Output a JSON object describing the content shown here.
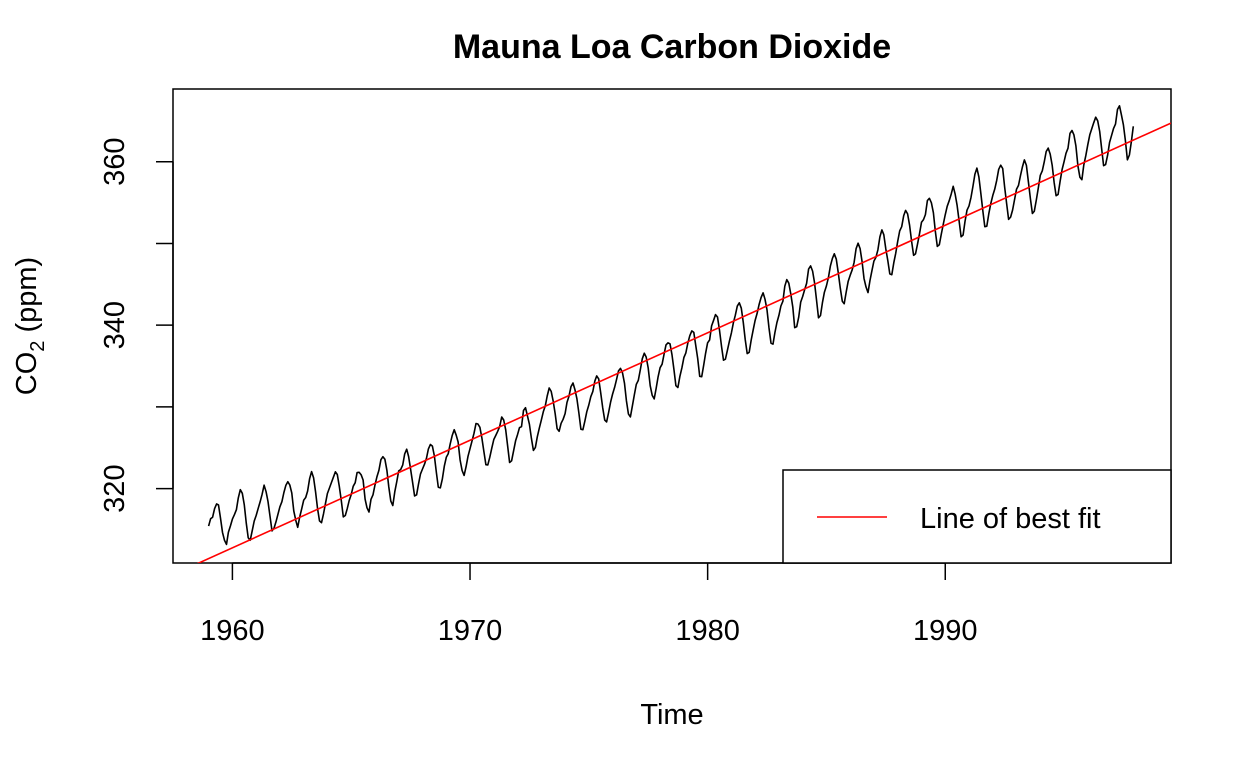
{
  "chart_data": {
    "type": "line",
    "title": "Mauna Loa Carbon Dioxide",
    "xlabel": "Time",
    "ylabel": {
      "main": "CO",
      "subscript": "2",
      "unit": " (ppm)"
    },
    "xlim": [
      1957.5,
      1999.5
    ],
    "ylim": [
      310.9,
      368.9
    ],
    "x_ticks": [
      1960,
      1970,
      1980,
      1990
    ],
    "y_ticks": [
      320,
      340,
      360
    ],
    "grid": false,
    "legend": {
      "position": "bottom-right",
      "entries": [
        {
          "label": "Line of best fit",
          "color": "#ff0000"
        }
      ]
    },
    "series": [
      {
        "style": "line",
        "color": "#000000",
        "x_start": 1959,
        "x_step": 0.08333,
        "values": [
          315.42,
          316.31,
          316.5,
          317.56,
          318.13,
          318.0,
          316.39,
          314.65,
          313.68,
          313.18,
          314.66,
          315.43,
          316.27,
          316.81,
          317.42,
          318.87,
          319.87,
          319.43,
          318.01,
          315.74,
          314.0,
          313.68,
          314.84,
          316.03,
          316.73,
          317.54,
          318.38,
          319.31,
          320.42,
          319.61,
          318.42,
          316.63,
          314.83,
          315.16,
          315.94,
          316.85,
          317.78,
          318.4,
          319.53,
          320.42,
          320.85,
          320.45,
          319.45,
          317.25,
          316.11,
          315.27,
          316.53,
          317.53,
          318.58,
          318.92,
          319.7,
          321.22,
          322.08,
          321.31,
          319.58,
          317.61,
          316.05,
          315.83,
          316.91,
          318.2,
          319.41,
          320.07,
          320.74,
          321.4,
          322.06,
          321.73,
          320.27,
          318.54,
          316.54,
          316.71,
          317.53,
          318.55,
          319.27,
          320.28,
          320.73,
          321.97,
          322.0,
          321.71,
          321.05,
          318.71,
          317.66,
          317.14,
          318.7,
          319.25,
          320.46,
          321.43,
          322.23,
          323.54,
          323.91,
          323.59,
          322.24,
          320.2,
          318.48,
          317.94,
          319.63,
          320.87,
          322.17,
          322.34,
          322.88,
          324.25,
          324.83,
          323.93,
          322.38,
          320.76,
          319.1,
          319.24,
          320.56,
          321.8,
          322.4,
          322.99,
          323.73,
          324.86,
          325.4,
          325.2,
          323.98,
          321.95,
          320.18,
          320.09,
          321.16,
          322.74,
          323.83,
          324.26,
          325.47,
          326.5,
          327.21,
          326.54,
          325.72,
          323.5,
          322.22,
          321.62,
          322.69,
          323.95,
          324.89,
          325.82,
          326.77,
          327.97,
          327.91,
          327.5,
          326.18,
          324.53,
          322.93,
          322.9,
          323.85,
          324.96,
          326.01,
          326.51,
          327.01,
          327.62,
          328.76,
          328.4,
          327.2,
          325.27,
          323.2,
          323.4,
          324.63,
          325.85,
          326.6,
          327.47,
          327.58,
          329.56,
          329.9,
          328.92,
          327.88,
          326.16,
          324.68,
          325.04,
          326.34,
          327.39,
          328.37,
          329.4,
          330.14,
          331.33,
          332.31,
          331.9,
          330.7,
          329.15,
          327.35,
          327.02,
          327.99,
          328.48,
          329.18,
          330.55,
          331.32,
          332.48,
          332.92,
          332.08,
          331.01,
          329.23,
          327.27,
          327.21,
          328.29,
          329.41,
          330.23,
          331.25,
          331.87,
          333.14,
          333.8,
          333.43,
          331.73,
          329.9,
          328.4,
          328.17,
          329.32,
          330.59,
          331.58,
          332.39,
          333.33,
          334.41,
          334.71,
          334.17,
          332.89,
          330.77,
          329.14,
          328.78,
          330.14,
          331.52,
          332.75,
          333.24,
          334.53,
          335.9,
          336.57,
          336.1,
          334.76,
          332.59,
          331.42,
          330.98,
          332.24,
          333.68,
          334.8,
          335.22,
          336.47,
          337.59,
          337.84,
          337.72,
          336.37,
          334.51,
          332.6,
          332.38,
          333.75,
          334.78,
          336.05,
          336.59,
          337.79,
          338.71,
          339.3,
          339.12,
          337.56,
          335.92,
          333.75,
          333.7,
          335.12,
          336.56,
          337.84,
          338.19,
          339.91,
          340.6,
          341.29,
          341.0,
          339.39,
          337.43,
          335.72,
          335.84,
          336.93,
          338.04,
          339.06,
          340.3,
          341.21,
          342.33,
          342.74,
          342.08,
          340.32,
          338.26,
          336.52,
          336.68,
          338.19,
          339.44,
          340.57,
          341.44,
          342.53,
          343.39,
          343.96,
          343.18,
          341.88,
          339.65,
          337.81,
          337.69,
          339.09,
          340.32,
          341.2,
          342.35,
          342.93,
          344.77,
          345.58,
          345.14,
          343.81,
          342.21,
          339.69,
          339.82,
          340.98,
          342.82,
          343.52,
          344.33,
          345.11,
          346.88,
          347.25,
          346.62,
          345.22,
          343.11,
          340.9,
          341.18,
          342.8,
          344.04,
          344.79,
          345.82,
          347.25,
          348.17,
          348.74,
          348.07,
          346.38,
          344.51,
          342.92,
          342.62,
          344.06,
          345.38,
          346.11,
          346.78,
          347.68,
          349.37,
          350.03,
          349.37,
          347.76,
          345.73,
          344.68,
          343.99,
          345.48,
          346.72,
          347.84,
          348.29,
          349.23,
          350.8,
          351.66,
          351.07,
          349.33,
          347.92,
          346.27,
          346.18,
          347.64,
          348.78,
          350.25,
          351.54,
          352.05,
          353.41,
          354.04,
          353.62,
          352.22,
          350.27,
          348.55,
          348.72,
          349.91,
          351.18,
          352.6,
          352.92,
          353.53,
          355.26,
          355.52,
          354.97,
          353.75,
          351.52,
          349.64,
          349.83,
          351.14,
          352.37,
          353.5,
          354.55,
          355.23,
          356.04,
          357.0,
          356.07,
          354.67,
          352.76,
          350.82,
          351.04,
          352.69,
          354.07,
          354.59,
          355.63,
          357.03,
          358.48,
          359.22,
          358.12,
          356.06,
          353.92,
          352.05,
          352.11,
          353.64,
          354.89,
          355.88,
          356.63,
          357.72,
          359.07,
          359.58,
          359.17,
          356.94,
          354.92,
          352.94,
          353.23,
          354.09,
          355.33,
          356.63,
          357.1,
          358.32,
          359.41,
          360.23,
          359.55,
          357.53,
          355.48,
          353.67,
          353.95,
          355.3,
          356.78,
          358.34,
          358.89,
          359.95,
          361.25,
          361.67,
          360.94,
          359.55,
          357.49,
          355.84,
          356.0,
          357.59,
          359.05,
          359.98,
          361.03,
          361.66,
          363.48,
          363.82,
          363.3,
          361.94,
          359.5,
          358.11,
          357.8,
          359.61,
          360.74,
          362.09,
          363.29,
          364.06,
          364.76,
          365.45,
          365.01,
          363.7,
          361.54,
          359.51,
          359.65,
          360.8,
          362.38,
          363.23,
          364.06,
          364.61,
          366.4,
          366.84,
          365.68,
          364.52,
          362.57,
          360.24,
          360.83,
          362.49,
          364.34
        ]
      },
      {
        "name": "Line of best fit",
        "style": "line",
        "color": "#ff0000",
        "x": [
          1957.5,
          1999.5
        ],
        "y": [
          309.47,
          364.73
        ]
      }
    ]
  }
}
